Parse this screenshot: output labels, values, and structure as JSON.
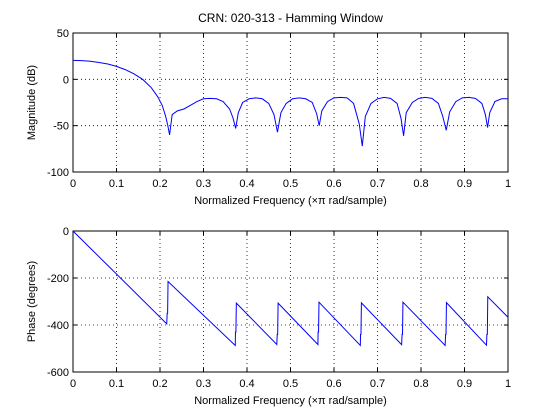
{
  "chart_data": [
    {
      "type": "line",
      "title": "CRN: 020-313 - Hamming Window",
      "xlabel": "Normalized Frequency  (×π rad/sample)",
      "ylabel": "Magnitude (dB)",
      "xlim": [
        0,
        1
      ],
      "ylim": [
        -100,
        50
      ],
      "xticks": [
        0,
        0.1,
        0.2,
        0.3,
        0.4,
        0.5,
        0.6,
        0.7,
        0.8,
        0.9,
        1
      ],
      "xtick_labels": [
        "0",
        "0.1",
        "0.2",
        "0.3",
        "0.4",
        "0.5",
        "0.6",
        "0.7",
        "0.8",
        "0.9",
        "1"
      ],
      "yticks": [
        -100,
        -50,
        0,
        50
      ],
      "ytick_labels": [
        "-100",
        "-50",
        "0",
        "50"
      ],
      "grid": true,
      "color": "#0000ff",
      "series": [
        {
          "x": [
            0,
            0.02,
            0.04,
            0.06,
            0.08,
            0.1,
            0.12,
            0.14,
            0.16,
            0.18,
            0.195,
            0.205,
            0.213,
            0.218,
            0.222,
            0.228,
            0.24,
            0.255,
            0.27,
            0.285,
            0.3,
            0.315,
            0.33,
            0.345,
            0.36,
            0.368,
            0.374,
            0.38,
            0.39,
            0.405,
            0.42,
            0.435,
            0.45,
            0.462,
            0.47,
            0.478,
            0.49,
            0.505,
            0.52,
            0.535,
            0.55,
            0.56,
            0.566,
            0.572,
            0.585,
            0.6,
            0.615,
            0.63,
            0.645,
            0.658,
            0.665,
            0.672,
            0.685,
            0.7,
            0.715,
            0.73,
            0.745,
            0.754,
            0.76,
            0.766,
            0.78,
            0.795,
            0.81,
            0.825,
            0.84,
            0.85,
            0.858,
            0.866,
            0.88,
            0.895,
            0.91,
            0.925,
            0.94,
            0.948,
            0.953,
            0.958,
            0.97,
            0.985,
            1.0
          ],
          "y": [
            20.5,
            20.2,
            19.5,
            18.2,
            16.5,
            14,
            10.5,
            6,
            0,
            -9,
            -19,
            -28,
            -40,
            -50,
            -60,
            -38,
            -34,
            -32,
            -28,
            -24,
            -21,
            -20.5,
            -21,
            -24,
            -32,
            -42,
            -53,
            -36,
            -25,
            -21,
            -20,
            -21,
            -26,
            -38,
            -57,
            -36,
            -26,
            -21,
            -20,
            -21,
            -25,
            -37,
            -50,
            -34,
            -24,
            -20,
            -19.5,
            -20,
            -26,
            -48,
            -72,
            -40,
            -26,
            -21,
            -19.5,
            -20.5,
            -26,
            -42,
            -61,
            -36,
            -25,
            -20.5,
            -19.5,
            -20.5,
            -26,
            -40,
            -55,
            -35,
            -24,
            -20,
            -19.5,
            -20.5,
            -26,
            -38,
            -52,
            -36,
            -24,
            -21,
            -21
          ]
        }
      ]
    },
    {
      "type": "line",
      "title": "",
      "xlabel": "Normalized Frequency  (×π rad/sample)",
      "ylabel": "Phase (degrees)",
      "xlim": [
        0,
        1
      ],
      "ylim": [
        -600,
        0
      ],
      "xticks": [
        0,
        0.1,
        0.2,
        0.3,
        0.4,
        0.5,
        0.6,
        0.7,
        0.8,
        0.9,
        1
      ],
      "xtick_labels": [
        "0",
        "0.1",
        "0.2",
        "0.3",
        "0.4",
        "0.5",
        "0.6",
        "0.7",
        "0.8",
        "0.9",
        "1"
      ],
      "yticks": [
        -600,
        -400,
        -200,
        0
      ],
      "ytick_labels": [
        "-600",
        "-400",
        "-200",
        "0"
      ],
      "grid": true,
      "color": "#0000ff",
      "series": [
        {
          "x": [
            0,
            0.2155,
            0.2165,
            0.2175,
            0.2185,
            0.373,
            0.3735,
            0.3745,
            0.3755,
            0.4685,
            0.4695,
            0.4705,
            0.4715,
            0.563,
            0.5635,
            0.5645,
            0.5655,
            0.6605,
            0.661,
            0.662,
            0.663,
            0.7555,
            0.7565,
            0.7575,
            0.7585,
            0.8555,
            0.8565,
            0.8575,
            0.8585,
            0.9505,
            0.9515,
            0.9525,
            0.9535,
            1.0
          ],
          "y": [
            0,
            -395,
            -350,
            -350,
            -215,
            -487,
            -430,
            -430,
            -307,
            -483,
            -440,
            -440,
            -307,
            -483,
            -430,
            -430,
            -303,
            -487,
            -440,
            -440,
            -306,
            -484,
            -440,
            -440,
            -303,
            -487,
            -440,
            -440,
            -305,
            -486,
            -440,
            -440,
            -280,
            -367
          ]
        }
      ]
    }
  ]
}
